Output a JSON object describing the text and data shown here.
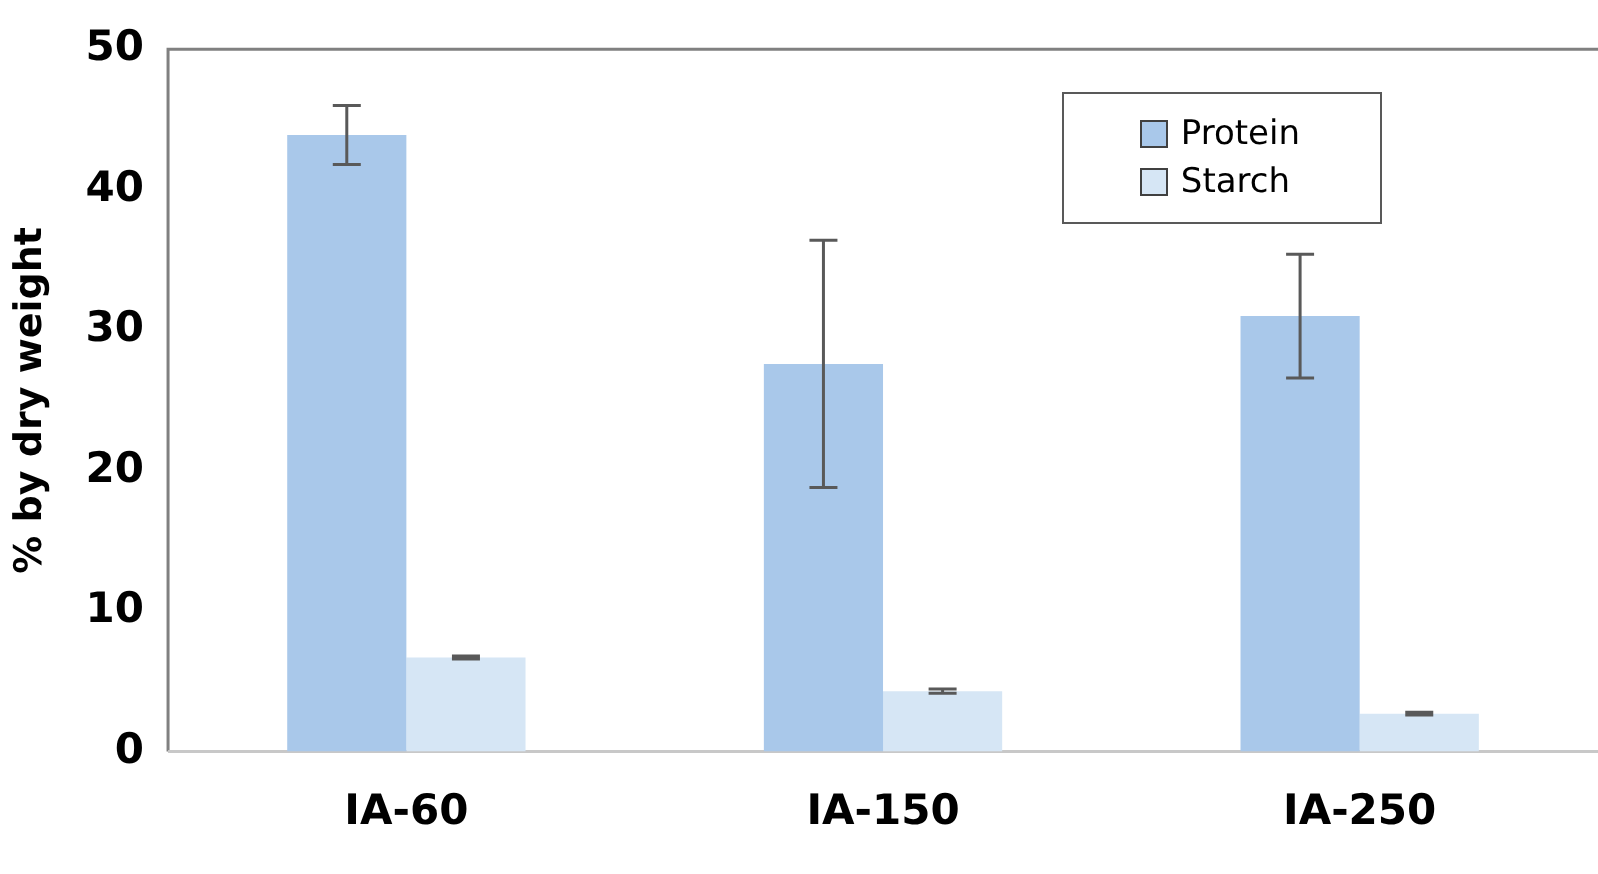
{
  "chart_data": {
    "type": "bar",
    "ylabel": "% by dry weight",
    "categories": [
      "IA-60",
      "IA-150",
      "IA-250"
    ],
    "series": [
      {
        "name": "Protein",
        "color": "#a9c8ea",
        "values": [
          43.9,
          27.6,
          31.0
        ],
        "errors": [
          2.1,
          8.8,
          4.4
        ]
      },
      {
        "name": "Starch",
        "color": "#d6e6f5",
        "values": [
          6.7,
          4.3,
          2.7
        ],
        "errors": [
          0.1,
          0.15,
          0.1
        ]
      }
    ],
    "ylim": [
      0,
      50
    ],
    "yticks": [
      0,
      10,
      20,
      30,
      40,
      50
    ],
    "grid": false,
    "legend": "top right"
  }
}
